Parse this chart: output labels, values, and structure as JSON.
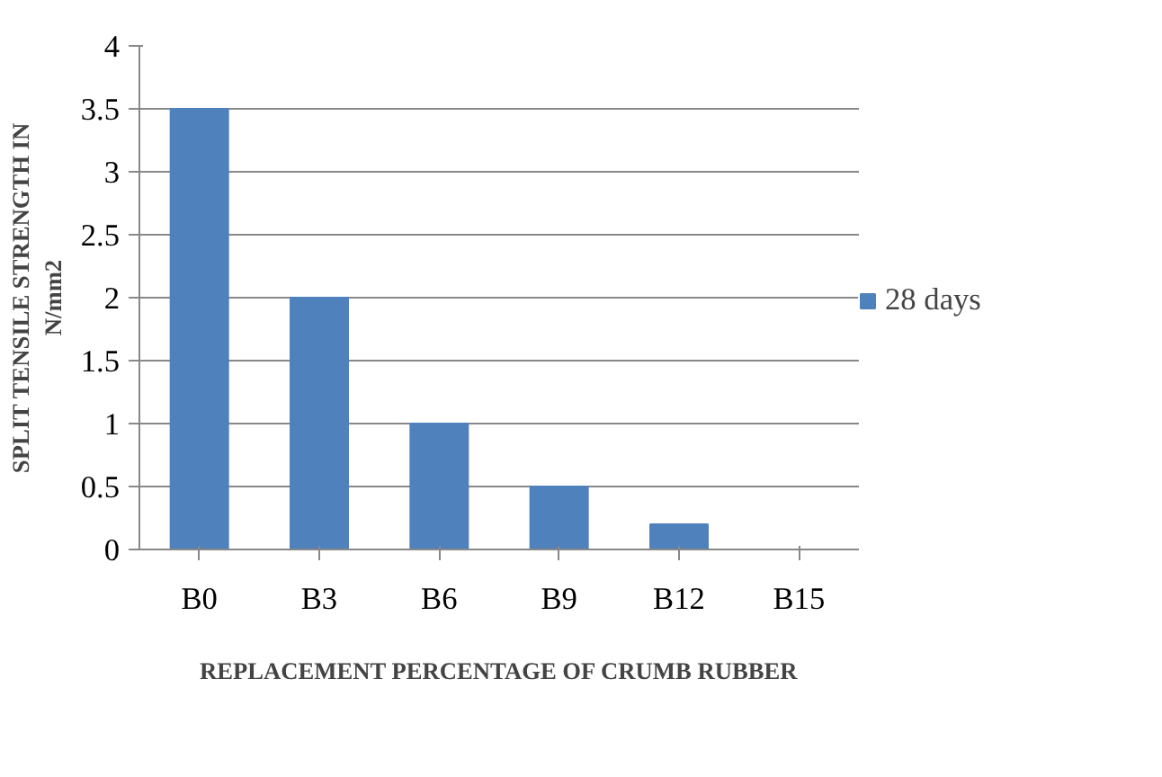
{
  "chart_data": {
    "type": "bar",
    "categories": [
      "B0",
      "B3",
      "B6",
      "B9",
      "B12",
      "B15"
    ],
    "series": [
      {
        "name": "28 days",
        "color": "#4f81bd",
        "values": [
          3.5,
          2.0,
          1.0,
          0.5,
          0.2,
          0
        ]
      }
    ],
    "xlabel": "REPLACEMENT PERCENTAGE OF CRUMB RUBBER",
    "ylabel": "SPLIT TENSILE STRENGTH IN\nN/mm2",
    "ylim": [
      0,
      4
    ],
    "yticks": [
      0,
      0.5,
      1,
      1.5,
      2,
      2.5,
      3,
      3.5,
      4
    ],
    "grid": "y",
    "legend": "right"
  }
}
